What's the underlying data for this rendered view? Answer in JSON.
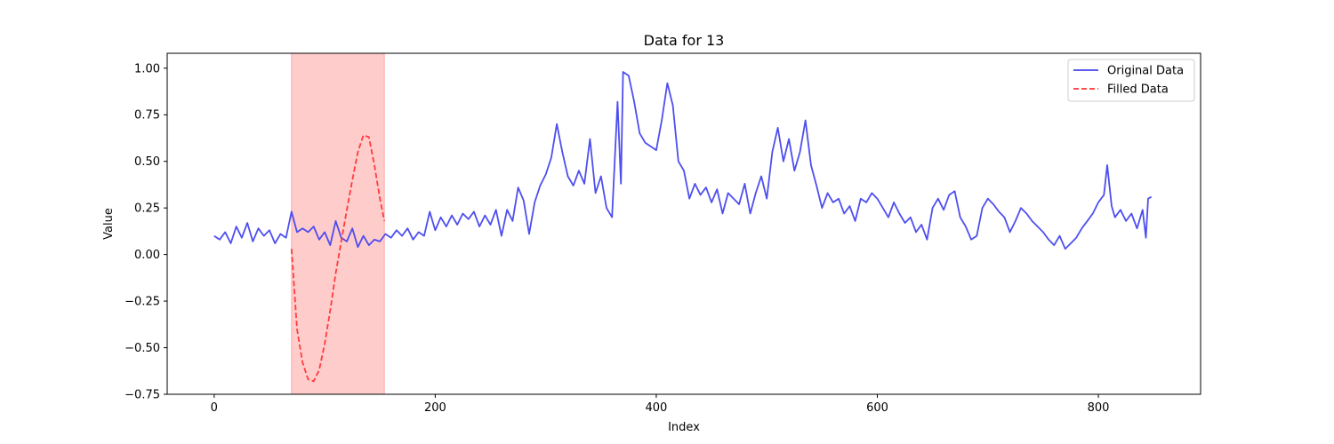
{
  "chart_data": {
    "type": "line",
    "title": "Data for 13",
    "xlabel": "Index",
    "ylabel": "Value",
    "xlim": [
      -42.5,
      892.5
    ],
    "ylim": [
      -0.75,
      1.08
    ],
    "xticks": [
      0,
      200,
      400,
      600,
      800
    ],
    "yticks": [
      -0.75,
      -0.5,
      -0.25,
      0.0,
      0.25,
      0.5,
      0.75,
      1.0
    ],
    "xtick_labels": [
      "0",
      "200",
      "400",
      "600",
      "800"
    ],
    "ytick_labels": [
      "−0.75",
      "−0.50",
      "−0.25",
      "0.00",
      "0.25",
      "0.50",
      "0.75",
      "1.00"
    ],
    "legend_position": "top-right",
    "shaded_region": {
      "x_start": 70,
      "x_end": 154,
      "color": "#ff9999"
    },
    "series": [
      {
        "name": "Original Data",
        "color": "#4444ee",
        "style": "solid",
        "keypoints": [
          [
            0,
            0.1
          ],
          [
            5,
            0.08
          ],
          [
            10,
            0.12
          ],
          [
            15,
            0.06
          ],
          [
            20,
            0.15
          ],
          [
            25,
            0.09
          ],
          [
            30,
            0.17
          ],
          [
            35,
            0.07
          ],
          [
            40,
            0.14
          ],
          [
            45,
            0.1
          ],
          [
            50,
            0.13
          ],
          [
            55,
            0.06
          ],
          [
            60,
            0.11
          ],
          [
            65,
            0.09
          ],
          [
            70,
            0.23
          ],
          [
            75,
            0.12
          ],
          [
            80,
            0.14
          ],
          [
            85,
            0.12
          ],
          [
            90,
            0.15
          ],
          [
            95,
            0.08
          ],
          [
            100,
            0.12
          ],
          [
            105,
            0.05
          ],
          [
            110,
            0.18
          ],
          [
            115,
            0.09
          ],
          [
            120,
            0.07
          ],
          [
            125,
            0.14
          ],
          [
            130,
            0.04
          ],
          [
            135,
            0.1
          ],
          [
            140,
            0.05
          ],
          [
            145,
            0.08
          ],
          [
            150,
            0.07
          ],
          [
            155,
            0.11
          ],
          [
            160,
            0.09
          ],
          [
            165,
            0.13
          ],
          [
            170,
            0.1
          ],
          [
            175,
            0.14
          ],
          [
            180,
            0.08
          ],
          [
            185,
            0.12
          ],
          [
            190,
            0.1
          ],
          [
            195,
            0.23
          ],
          [
            200,
            0.13
          ],
          [
            205,
            0.2
          ],
          [
            210,
            0.15
          ],
          [
            215,
            0.21
          ],
          [
            220,
            0.16
          ],
          [
            225,
            0.22
          ],
          [
            230,
            0.19
          ],
          [
            235,
            0.23
          ],
          [
            240,
            0.15
          ],
          [
            245,
            0.21
          ],
          [
            250,
            0.16
          ],
          [
            255,
            0.24
          ],
          [
            260,
            0.1
          ],
          [
            265,
            0.24
          ],
          [
            270,
            0.18
          ],
          [
            275,
            0.36
          ],
          [
            280,
            0.29
          ],
          [
            285,
            0.11
          ],
          [
            290,
            0.28
          ],
          [
            295,
            0.37
          ],
          [
            300,
            0.43
          ],
          [
            305,
            0.52
          ],
          [
            310,
            0.7
          ],
          [
            315,
            0.55
          ],
          [
            320,
            0.42
          ],
          [
            325,
            0.37
          ],
          [
            330,
            0.45
          ],
          [
            335,
            0.38
          ],
          [
            340,
            0.62
          ],
          [
            345,
            0.33
          ],
          [
            350,
            0.42
          ],
          [
            355,
            0.25
          ],
          [
            360,
            0.2
          ],
          [
            365,
            0.82
          ],
          [
            368,
            0.38
          ],
          [
            370,
            0.98
          ],
          [
            375,
            0.96
          ],
          [
            380,
            0.82
          ],
          [
            385,
            0.65
          ],
          [
            390,
            0.6
          ],
          [
            395,
            0.58
          ],
          [
            400,
            0.56
          ],
          [
            405,
            0.72
          ],
          [
            410,
            0.92
          ],
          [
            415,
            0.8
          ],
          [
            420,
            0.5
          ],
          [
            425,
            0.45
          ],
          [
            430,
            0.3
          ],
          [
            435,
            0.38
          ],
          [
            440,
            0.32
          ],
          [
            445,
            0.36
          ],
          [
            450,
            0.28
          ],
          [
            455,
            0.35
          ],
          [
            460,
            0.22
          ],
          [
            465,
            0.33
          ],
          [
            470,
            0.3
          ],
          [
            475,
            0.27
          ],
          [
            480,
            0.38
          ],
          [
            485,
            0.22
          ],
          [
            490,
            0.33
          ],
          [
            495,
            0.42
          ],
          [
            500,
            0.3
          ],
          [
            505,
            0.55
          ],
          [
            510,
            0.68
          ],
          [
            515,
            0.5
          ],
          [
            520,
            0.62
          ],
          [
            525,
            0.45
          ],
          [
            530,
            0.55
          ],
          [
            535,
            0.72
          ],
          [
            540,
            0.48
          ],
          [
            545,
            0.37
          ],
          [
            550,
            0.25
          ],
          [
            555,
            0.33
          ],
          [
            560,
            0.28
          ],
          [
            565,
            0.3
          ],
          [
            570,
            0.22
          ],
          [
            575,
            0.26
          ],
          [
            580,
            0.18
          ],
          [
            585,
            0.3
          ],
          [
            590,
            0.28
          ],
          [
            595,
            0.33
          ],
          [
            600,
            0.3
          ],
          [
            605,
            0.25
          ],
          [
            610,
            0.2
          ],
          [
            615,
            0.28
          ],
          [
            620,
            0.22
          ],
          [
            625,
            0.17
          ],
          [
            630,
            0.2
          ],
          [
            635,
            0.12
          ],
          [
            640,
            0.16
          ],
          [
            645,
            0.08
          ],
          [
            650,
            0.25
          ],
          [
            655,
            0.3
          ],
          [
            660,
            0.24
          ],
          [
            665,
            0.32
          ],
          [
            670,
            0.34
          ],
          [
            675,
            0.2
          ],
          [
            680,
            0.15
          ],
          [
            685,
            0.08
          ],
          [
            690,
            0.1
          ],
          [
            695,
            0.25
          ],
          [
            700,
            0.3
          ],
          [
            705,
            0.27
          ],
          [
            710,
            0.23
          ],
          [
            715,
            0.2
          ],
          [
            720,
            0.12
          ],
          [
            725,
            0.18
          ],
          [
            730,
            0.25
          ],
          [
            735,
            0.22
          ],
          [
            740,
            0.18
          ],
          [
            745,
            0.15
          ],
          [
            750,
            0.12
          ],
          [
            755,
            0.08
          ],
          [
            760,
            0.05
          ],
          [
            765,
            0.1
          ],
          [
            770,
            0.03
          ],
          [
            775,
            0.06
          ],
          [
            780,
            0.09
          ],
          [
            785,
            0.14
          ],
          [
            790,
            0.18
          ],
          [
            795,
            0.22
          ],
          [
            800,
            0.28
          ],
          [
            805,
            0.32
          ],
          [
            808,
            0.48
          ],
          [
            812,
            0.26
          ],
          [
            815,
            0.2
          ],
          [
            820,
            0.24
          ],
          [
            825,
            0.18
          ],
          [
            830,
            0.22
          ],
          [
            835,
            0.14
          ],
          [
            840,
            0.24
          ],
          [
            843,
            0.09
          ],
          [
            845,
            0.3
          ],
          [
            848,
            0.31
          ]
        ]
      },
      {
        "name": "Filled Data",
        "color": "#ff3333",
        "style": "dashed",
        "keypoints": [
          [
            70,
            0.03
          ],
          [
            75,
            -0.4
          ],
          [
            80,
            -0.58
          ],
          [
            85,
            -0.67
          ],
          [
            90,
            -0.68
          ],
          [
            95,
            -0.62
          ],
          [
            100,
            -0.48
          ],
          [
            105,
            -0.3
          ],
          [
            110,
            -0.1
          ],
          [
            115,
            0.07
          ],
          [
            120,
            0.24
          ],
          [
            125,
            0.4
          ],
          [
            130,
            0.55
          ],
          [
            135,
            0.64
          ],
          [
            140,
            0.63
          ],
          [
            145,
            0.48
          ],
          [
            150,
            0.3
          ],
          [
            154,
            0.18
          ]
        ]
      }
    ]
  }
}
